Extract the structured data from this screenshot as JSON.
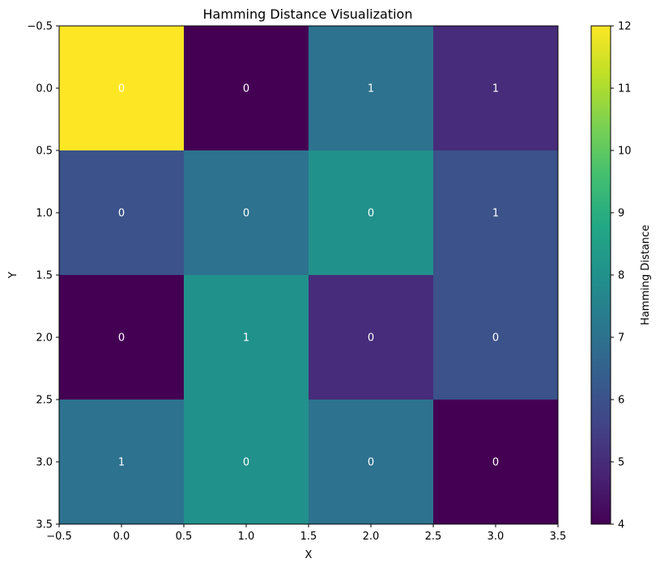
{
  "chart_data": {
    "type": "heatmap",
    "title": "Hamming Distance Visualization",
    "xlabel": "X",
    "ylabel": "Y",
    "xlim": [
      -0.5,
      3.5
    ],
    "ylim": [
      3.5,
      -0.5
    ],
    "x_ticks": [
      -0.5,
      0.0,
      0.5,
      1.0,
      1.5,
      2.0,
      2.5,
      3.0,
      3.5
    ],
    "y_ticks": [
      -0.5,
      0.0,
      0.5,
      1.0,
      1.5,
      2.0,
      2.5,
      3.0,
      3.5
    ],
    "x_tick_labels": [
      "−0.5",
      "0.0",
      "0.5",
      "1.0",
      "1.5",
      "2.0",
      "2.5",
      "3.0",
      "3.5"
    ],
    "y_tick_labels": [
      "−0.5",
      "0.0",
      "0.5",
      "1.0",
      "1.5",
      "2.0",
      "2.5",
      "3.0",
      "3.5"
    ],
    "colorbar": {
      "label": "Hamming Distance",
      "range": [
        4,
        12
      ],
      "ticks": [
        4,
        5,
        6,
        7,
        8,
        9,
        10,
        11,
        12
      ],
      "tick_labels": [
        "4",
        "5",
        "6",
        "7",
        "8",
        "9",
        "10",
        "11",
        "12"
      ],
      "colormap": "viridis"
    },
    "values": [
      [
        12,
        4,
        7,
        5
      ],
      [
        6,
        7,
        8,
        6
      ],
      [
        4,
        8,
        5,
        6
      ],
      [
        7,
        8,
        7,
        4
      ]
    ],
    "annotations": [
      [
        "0",
        "0",
        "1",
        "1"
      ],
      [
        "0",
        "0",
        "0",
        "1"
      ],
      [
        "0",
        "1",
        "0",
        "0"
      ],
      [
        "1",
        "0",
        "0",
        "0"
      ]
    ],
    "annotation_color": "#ffffff"
  }
}
